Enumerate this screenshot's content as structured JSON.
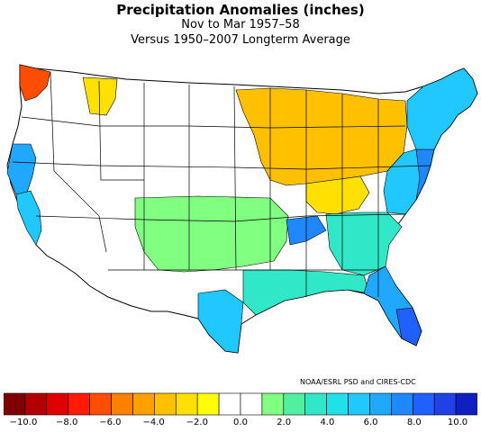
{
  "title": "Precipitation Anomalies (inches)",
  "subtitle1": "Nov to Mar 1957–58",
  "subtitle2": "Versus 1950–2007 Longterm Average",
  "credit": "NOAA/ESRL PSD and CIRES-CDC",
  "legend": {
    "colors": [
      "#7f0000",
      "#b20000",
      "#e00000",
      "#ff1a00",
      "#ff4d00",
      "#ff7f00",
      "#ffa000",
      "#ffc000",
      "#ffe000",
      "#ffff00",
      "#ffffff",
      "#ffffff",
      "#80ff80",
      "#50f0a0",
      "#30e8c8",
      "#20e0e8",
      "#20c8ff",
      "#20a8ff",
      "#2088ff",
      "#2060ff",
      "#2040e8",
      "#1020c0"
    ],
    "tick_labels": [
      "−10.0",
      "−8.0",
      "−6.0",
      "−4.0",
      "−2.0",
      "0.0",
      "2.0",
      "4.0",
      "6.0",
      "8.0",
      "10.0"
    ]
  },
  "region_colors": {
    "pacific_northwest_coast": "#ff4d00",
    "dry_northwest": "#ffe000",
    "west_coast": "#20a8ff",
    "california_coast": "#20c8ff",
    "great_lakes_midwest": "#ffc000",
    "ohio_valley": "#ffe000",
    "southern_plains": "#80ff80",
    "gulf_coast": "#30e8c8",
    "south_texas": "#20c8ff",
    "florida": "#20a8ff",
    "south_florida": "#2060ff",
    "east_coast": "#20c8ff",
    "mid_atlantic": "#2088ff",
    "new_england": "#20c8ff",
    "tennessee": "#2088ff",
    "southeast": "#30e8c8"
  }
}
